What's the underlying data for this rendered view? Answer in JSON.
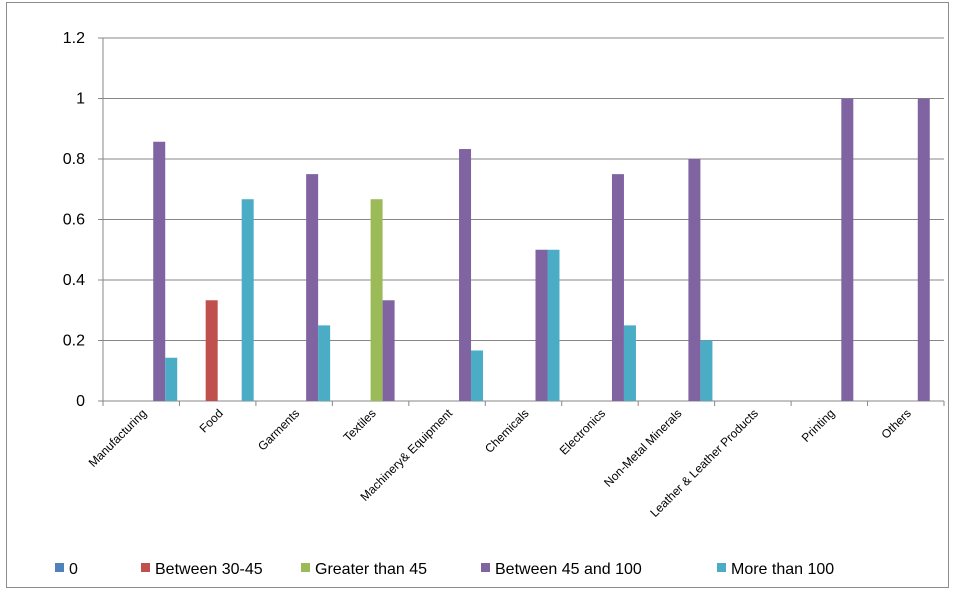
{
  "chart_data": {
    "type": "bar",
    "categories": [
      "Manufacturing",
      "Food",
      "Garments",
      "Textiles",
      "Machinery& Equipment",
      "Chemicals",
      "Electronics",
      "Non-Metal Minerals",
      "Leather & Leather Products",
      "Printing",
      "Others"
    ],
    "series": [
      {
        "name": "0",
        "color": "#4F81BD",
        "values": [
          0,
          0,
          0,
          0,
          0,
          0,
          0,
          0,
          0,
          0,
          0
        ]
      },
      {
        "name": "Between 30-45",
        "color": "#C0504D",
        "values": [
          0,
          0.333,
          0,
          0,
          0,
          0,
          0,
          0,
          0,
          0,
          0
        ]
      },
      {
        "name": "Greater than 45",
        "color": "#9BBB59",
        "values": [
          0,
          0,
          0,
          0.667,
          0,
          0,
          0,
          0,
          0,
          0,
          0
        ]
      },
      {
        "name": "Between 45 and 100",
        "color": "#8064A2",
        "values": [
          0.857,
          0,
          0.75,
          0.333,
          0.833,
          0.5,
          0.75,
          0.8,
          0,
          1,
          1
        ]
      },
      {
        "name": "More than 100",
        "color": "#4BACC6",
        "values": [
          0.143,
          0.667,
          0.25,
          0,
          0.167,
          0.5,
          0.25,
          0.2,
          0,
          0,
          0
        ]
      }
    ],
    "y_ticks": [
      "0",
      "0.2",
      "0.4",
      "0.6",
      "0.8",
      "1",
      "1.2"
    ],
    "ylim": [
      0,
      1.2
    ],
    "grid": true,
    "legend_position": "bottom",
    "title": "",
    "xlabel": "",
    "ylabel": ""
  }
}
